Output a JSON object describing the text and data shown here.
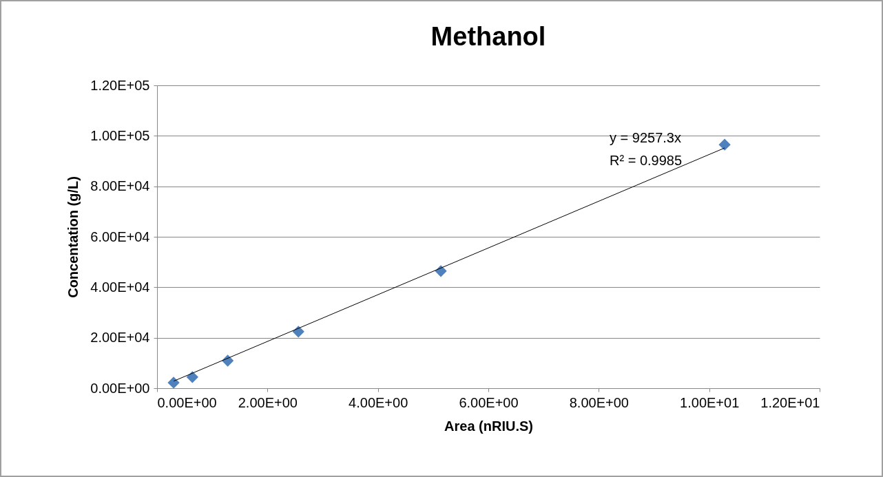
{
  "chart_data": {
    "type": "scatter",
    "title": "Methanol",
    "xlabel": "Area (nRIU.S)",
    "ylabel": "Concentation (g/L)",
    "x": [
      0.3,
      0.64,
      1.28,
      2.56,
      5.14,
      10.28
    ],
    "series": [
      {
        "color": "#4f81bd",
        "marker": "diamond",
        "values": [
          2200,
          4400,
          10900,
          22400,
          46400,
          96500
        ]
      },
      {
        "type": "line",
        "color": "#000000",
        "marker": "none",
        "x": [
          0.3,
          10.28
        ],
        "values": [
          2800,
          95200
        ]
      }
    ],
    "annotations": [
      "y = 9257.3x",
      "R² = 0.9985"
    ],
    "xlim": [
      0,
      12
    ],
    "ylim": [
      0,
      120000
    ],
    "xticks": [
      {
        "value": 0,
        "label": "0.00E+00"
      },
      {
        "value": 2,
        "label": "2.00E+00"
      },
      {
        "value": 4,
        "label": "4.00E+00"
      },
      {
        "value": 6,
        "label": "6.00E+00"
      },
      {
        "value": 8,
        "label": "8.00E+00"
      },
      {
        "value": 10,
        "label": "1.00E+01"
      },
      {
        "value": 12,
        "label": "1.20E+01"
      }
    ],
    "yticks": [
      {
        "value": 0,
        "label": "0.00E+00"
      },
      {
        "value": 20000,
        "label": "2.00E+04"
      },
      {
        "value": 40000,
        "label": "4.00E+04"
      },
      {
        "value": 60000,
        "label": "6.00E+04"
      },
      {
        "value": 80000,
        "label": "8.00E+04"
      },
      {
        "value": 100000,
        "label": "1.00E+05"
      },
      {
        "value": 120000,
        "label": "1.20E+05"
      }
    ],
    "grid": "y"
  }
}
